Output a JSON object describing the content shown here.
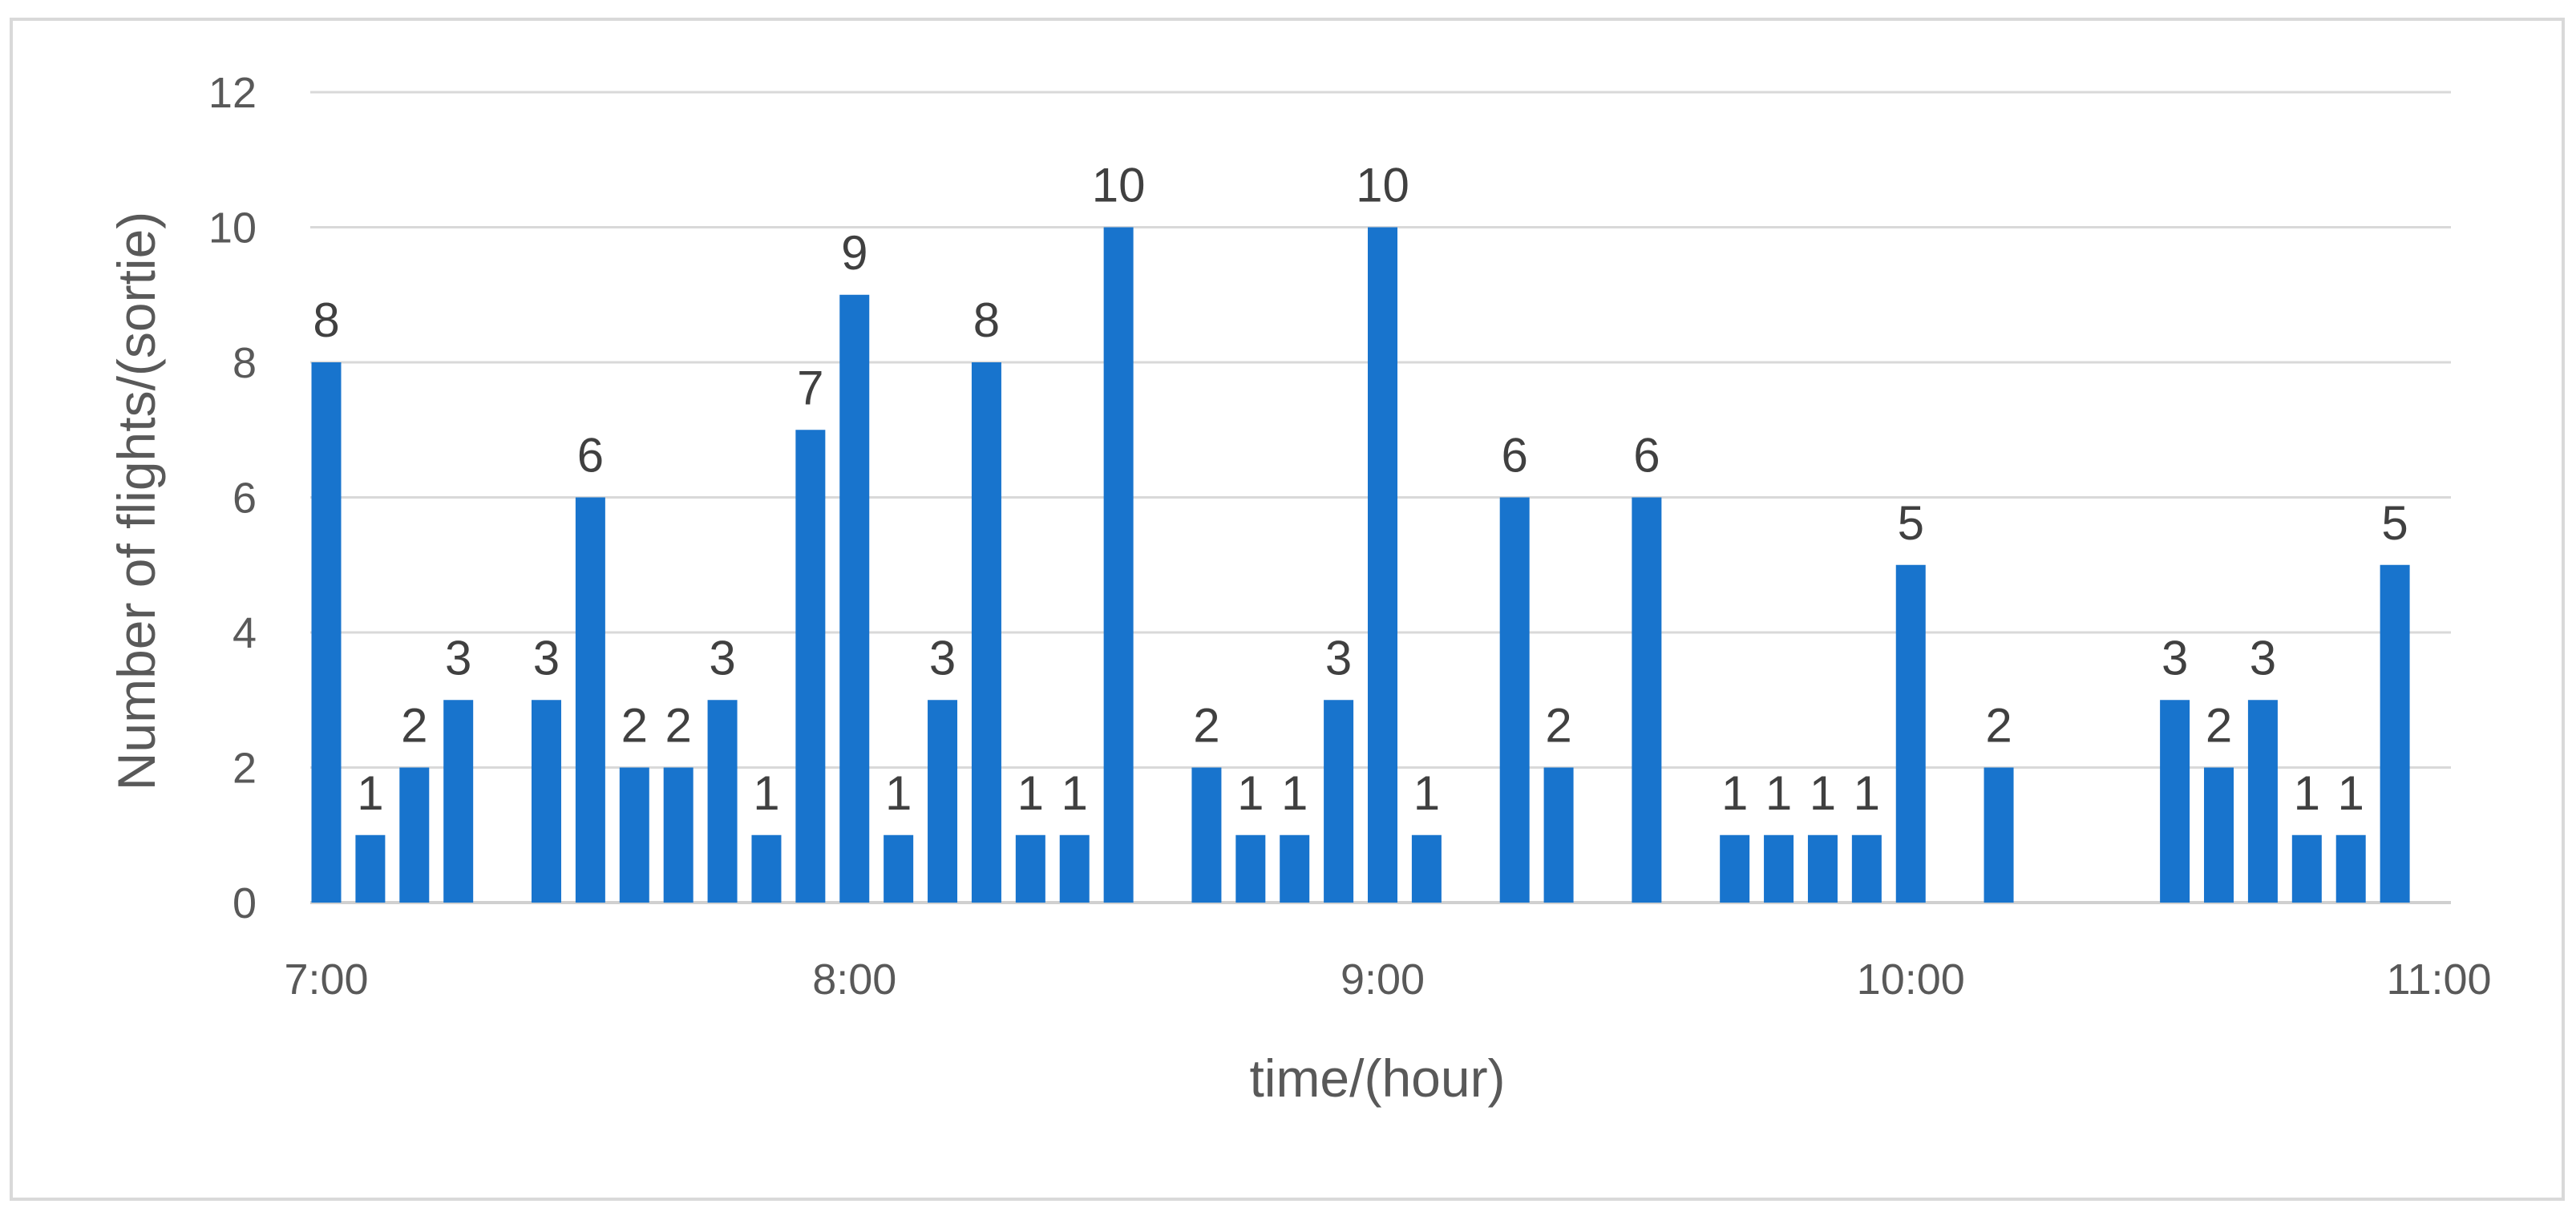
{
  "chart_data": {
    "type": "bar",
    "title": "",
    "xlabel": "time/(hour)",
    "ylabel": "Number of flights/(sortie)",
    "ylim": [
      0,
      12
    ],
    "yticks": [
      0,
      2,
      4,
      6,
      8,
      10,
      12
    ],
    "xlim": [
      420,
      660
    ],
    "xticks": [
      {
        "minute": 420,
        "label": "7:00"
      },
      {
        "minute": 480,
        "label": "8:00"
      },
      {
        "minute": 540,
        "label": "9:00"
      },
      {
        "minute": 600,
        "label": "10:00"
      },
      {
        "minute": 660,
        "label": "11:00"
      }
    ],
    "grid": true,
    "legend": "none",
    "bar_color": "#1874cd",
    "series": [
      {
        "points": [
          {
            "time": "7:00",
            "value": 8
          },
          {
            "time": "7:05",
            "value": 1
          },
          {
            "time": "7:10",
            "value": 2
          },
          {
            "time": "7:15",
            "value": 3
          },
          {
            "time": "7:25",
            "value": 3
          },
          {
            "time": "7:30",
            "value": 6
          },
          {
            "time": "7:35",
            "value": 2
          },
          {
            "time": "7:40",
            "value": 2
          },
          {
            "time": "7:45",
            "value": 3
          },
          {
            "time": "7:50",
            "value": 1
          },
          {
            "time": "7:55",
            "value": 7
          },
          {
            "time": "8:00",
            "value": 9
          },
          {
            "time": "8:05",
            "value": 1
          },
          {
            "time": "8:10",
            "value": 3
          },
          {
            "time": "8:15",
            "value": 8
          },
          {
            "time": "8:20",
            "value": 1
          },
          {
            "time": "8:25",
            "value": 1
          },
          {
            "time": "8:30",
            "value": 10
          },
          {
            "time": "8:40",
            "value": 2
          },
          {
            "time": "8:45",
            "value": 1
          },
          {
            "time": "8:50",
            "value": 1
          },
          {
            "time": "8:55",
            "value": 3
          },
          {
            "time": "9:00",
            "value": 10
          },
          {
            "time": "9:05",
            "value": 1
          },
          {
            "time": "9:15",
            "value": 6
          },
          {
            "time": "9:20",
            "value": 2
          },
          {
            "time": "9:30",
            "value": 6
          },
          {
            "time": "9:40",
            "value": 1
          },
          {
            "time": "9:45",
            "value": 1
          },
          {
            "time": "9:50",
            "value": 1
          },
          {
            "time": "9:55",
            "value": 1
          },
          {
            "time": "10:00",
            "value": 5
          },
          {
            "time": "10:10",
            "value": 2
          },
          {
            "time": "10:30",
            "value": 3
          },
          {
            "time": "10:35",
            "value": 2
          },
          {
            "time": "10:40",
            "value": 3
          },
          {
            "time": "10:45",
            "value": 1
          },
          {
            "time": "10:50",
            "value": 1
          },
          {
            "time": "10:55",
            "value": 5
          }
        ]
      }
    ]
  }
}
